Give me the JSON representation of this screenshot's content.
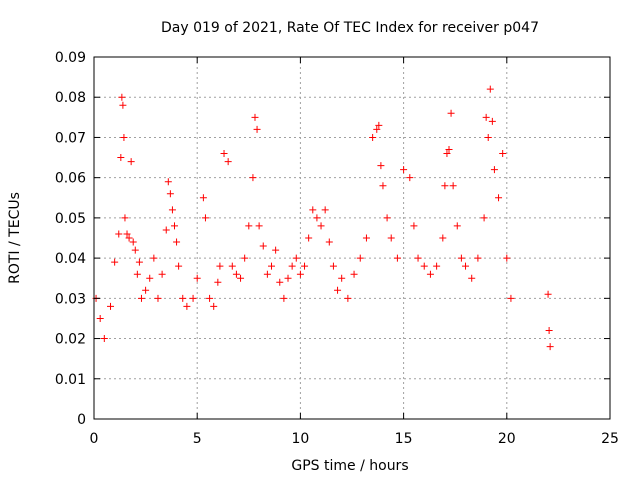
{
  "chart_data": {
    "type": "scatter",
    "title": "Day 019 of 2021, Rate Of TEC Index for receiver p047",
    "xlabel": "GPS time / hours",
    "ylabel": "ROTI / TECUs",
    "xlim": [
      0,
      25
    ],
    "ylim": [
      0,
      0.09
    ],
    "x_ticks": [
      "0",
      "5",
      "10",
      "15",
      "20",
      "25"
    ],
    "y_ticks": [
      "0",
      "0.01",
      "0.02",
      "0.03",
      "0.04",
      "0.05",
      "0.06",
      "0.07",
      "0.08",
      "0.09"
    ],
    "grid": true,
    "marker": "plus",
    "color": "#ff0000",
    "series": [
      {
        "x": [
          0.1,
          0.3,
          0.5,
          0.8,
          1.0,
          1.2,
          1.3,
          1.35,
          1.4,
          1.45,
          1.5,
          1.6,
          1.7,
          1.8,
          1.9,
          2.0,
          2.1,
          2.2,
          2.3,
          2.5,
          2.7,
          2.9,
          3.1,
          3.3,
          3.5,
          3.6,
          3.7,
          3.8,
          3.9,
          4.0,
          4.1,
          4.3,
          4.5,
          4.8,
          5.0,
          5.3,
          5.4,
          5.6,
          5.8,
          6.0,
          6.1,
          6.3,
          6.5,
          6.7,
          6.9,
          7.1,
          7.3,
          7.5,
          7.7,
          7.8,
          7.9,
          8.0,
          8.2,
          8.4,
          8.6,
          8.8,
          9.0,
          9.2,
          9.4,
          9.6,
          9.8,
          10.0,
          10.2,
          10.4,
          10.6,
          10.8,
          11.0,
          11.2,
          11.4,
          11.6,
          11.8,
          12.0,
          12.3,
          12.6,
          12.9,
          13.2,
          13.5,
          13.7,
          13.8,
          13.9,
          14.0,
          14.2,
          14.4,
          14.7,
          15.0,
          15.3,
          15.5,
          15.7,
          16.0,
          16.3,
          16.6,
          16.9,
          17.0,
          17.1,
          17.2,
          17.3,
          17.4,
          17.6,
          17.8,
          18.0,
          18.3,
          18.6,
          18.9,
          19.0,
          19.1,
          19.2,
          19.3,
          19.4,
          19.6,
          19.8,
          20.0,
          20.2,
          22.0,
          22.05,
          22.1
        ],
        "y": [
          0.03,
          0.025,
          0.02,
          0.028,
          0.039,
          0.046,
          0.065,
          0.08,
          0.078,
          0.07,
          0.05,
          0.046,
          0.045,
          0.064,
          0.044,
          0.042,
          0.036,
          0.039,
          0.03,
          0.032,
          0.035,
          0.04,
          0.03,
          0.036,
          0.047,
          0.059,
          0.056,
          0.052,
          0.048,
          0.044,
          0.038,
          0.03,
          0.028,
          0.03,
          0.035,
          0.055,
          0.05,
          0.03,
          0.028,
          0.034,
          0.038,
          0.066,
          0.064,
          0.038,
          0.036,
          0.035,
          0.04,
          0.048,
          0.06,
          0.075,
          0.072,
          0.048,
          0.043,
          0.036,
          0.038,
          0.042,
          0.034,
          0.03,
          0.035,
          0.038,
          0.04,
          0.036,
          0.038,
          0.045,
          0.052,
          0.05,
          0.048,
          0.052,
          0.044,
          0.038,
          0.032,
          0.035,
          0.03,
          0.036,
          0.04,
          0.045,
          0.07,
          0.072,
          0.073,
          0.063,
          0.058,
          0.05,
          0.045,
          0.04,
          0.062,
          0.06,
          0.048,
          0.04,
          0.038,
          0.036,
          0.038,
          0.045,
          0.058,
          0.066,
          0.067,
          0.076,
          0.058,
          0.048,
          0.04,
          0.038,
          0.035,
          0.04,
          0.05,
          0.075,
          0.07,
          0.082,
          0.074,
          0.062,
          0.055,
          0.066,
          0.04,
          0.03,
          0.031,
          0.022,
          0.018
        ]
      }
    ]
  }
}
